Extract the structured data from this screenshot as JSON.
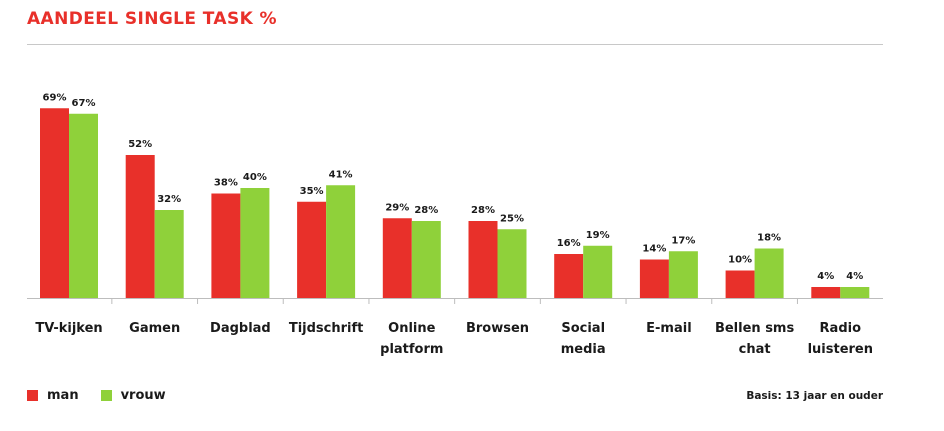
{
  "chart_data": {
    "type": "bar",
    "title": "AANDEEL SINGLE TASK %",
    "categories": [
      [
        "TV-kijken"
      ],
      [
        "Gamen"
      ],
      [
        "Dagblad"
      ],
      [
        "Tijdschrift"
      ],
      [
        "Online",
        "platform"
      ],
      [
        "Browsen"
      ],
      [
        "Social",
        "media"
      ],
      [
        "E-mail"
      ],
      [
        "Bellen sms",
        "chat"
      ],
      [
        "Radio",
        "luisteren"
      ]
    ],
    "series": [
      {
        "name": "man",
        "color": "#e8302a",
        "values": [
          69,
          52,
          38,
          35,
          29,
          28,
          16,
          14,
          10,
          4
        ],
        "labels": [
          "69%",
          "52%",
          "38%",
          "35%",
          "29%",
          "28%",
          "16%",
          "14%",
          "10%",
          "4%"
        ]
      },
      {
        "name": "vrouw",
        "color": "#8fd13a",
        "values": [
          67,
          32,
          40,
          41,
          28,
          25,
          19,
          17,
          18,
          4
        ],
        "labels": [
          "67%",
          "32%",
          "40%",
          "41%",
          "28%",
          "25%",
          "19%",
          "17%",
          "18%",
          "4%"
        ]
      }
    ],
    "ylim": [
      0,
      72
    ],
    "grid": false,
    "legend_position": "bottom-left"
  },
  "footer": {
    "basis": "Basis: 13 jaar en ouder"
  }
}
